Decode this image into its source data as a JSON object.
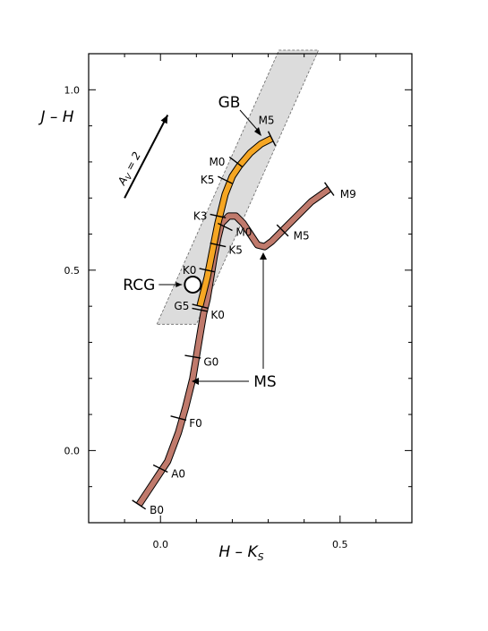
{
  "chart_data": {
    "type": "line",
    "xlabel_main": "H – K",
    "xlabel_sub": "S",
    "ylabel": "J – H",
    "xlim": [
      -0.2,
      0.7
    ],
    "ylim": [
      -0.2,
      1.1
    ],
    "x_ticks": [
      {
        "v": 0.0,
        "label": "0.0"
      },
      {
        "v": 0.5,
        "label": "0.5"
      }
    ],
    "y_ticks": [
      {
        "v": 0.0,
        "label": "0.0"
      },
      {
        "v": 0.5,
        "label": "0.5"
      },
      {
        "v": 1.0,
        "label": "1.0"
      }
    ],
    "colors": {
      "ms_fill": "#c07a6c",
      "gb_fill": "#f5a623",
      "band_fill": "#dcdcdc",
      "outline": "#000000"
    },
    "reddening_band": [
      [
        -0.01,
        0.35
      ],
      [
        0.33,
        1.11
      ],
      [
        0.44,
        1.11
      ],
      [
        0.1,
        0.35
      ]
    ],
    "extinction_vector": {
      "label_main": "A",
      "label_sub": "V",
      "label_tail": " = 2",
      "from": [
        -0.1,
        0.7
      ],
      "to": [
        0.02,
        0.93
      ]
    },
    "main_sequence": {
      "name": "MS",
      "points": [
        [
          -0.06,
          -0.15
        ],
        [
          -0.02,
          -0.09
        ],
        [
          0.02,
          -0.03
        ],
        [
          0.05,
          0.05
        ],
        [
          0.07,
          0.12
        ],
        [
          0.09,
          0.2
        ],
        [
          0.1,
          0.26
        ],
        [
          0.11,
          0.32
        ],
        [
          0.12,
          0.38
        ],
        [
          0.13,
          0.42
        ],
        [
          0.14,
          0.48
        ],
        [
          0.15,
          0.54
        ],
        [
          0.16,
          0.59
        ],
        [
          0.17,
          0.63
        ],
        [
          0.19,
          0.65
        ],
        [
          0.21,
          0.65
        ],
        [
          0.23,
          0.63
        ],
        [
          0.25,
          0.6
        ],
        [
          0.27,
          0.57
        ],
        [
          0.29,
          0.565
        ],
        [
          0.31,
          0.58
        ],
        [
          0.34,
          0.61
        ],
        [
          0.38,
          0.65
        ],
        [
          0.42,
          0.69
        ],
        [
          0.47,
          0.725
        ]
      ],
      "ticks": [
        {
          "label": "B0",
          "x": -0.06,
          "y": -0.15,
          "side": "right"
        },
        {
          "label": "A0",
          "x": 0.0,
          "y": -0.05,
          "side": "right"
        },
        {
          "label": "F0",
          "x": 0.05,
          "y": 0.09,
          "side": "right"
        },
        {
          "label": "G0",
          "x": 0.09,
          "y": 0.26,
          "side": "right"
        },
        {
          "label": "K0",
          "x": 0.11,
          "y": 0.39,
          "side": "right"
        },
        {
          "label": "K5",
          "x": 0.16,
          "y": 0.57,
          "side": "right"
        },
        {
          "label": "M0",
          "x": 0.18,
          "y": 0.62,
          "side": "right"
        },
        {
          "label": "M5",
          "x": 0.34,
          "y": 0.61,
          "side": "right"
        },
        {
          "label": "M9",
          "x": 0.47,
          "y": 0.725,
          "side": "right"
        }
      ]
    },
    "giant_branch": {
      "name": "GB",
      "points": [
        [
          0.11,
          0.4
        ],
        [
          0.12,
          0.44
        ],
        [
          0.13,
          0.48
        ],
        [
          0.14,
          0.53
        ],
        [
          0.15,
          0.58
        ],
        [
          0.16,
          0.63
        ],
        [
          0.17,
          0.67
        ],
        [
          0.18,
          0.71
        ],
        [
          0.2,
          0.76
        ],
        [
          0.22,
          0.79
        ],
        [
          0.25,
          0.825
        ],
        [
          0.28,
          0.85
        ],
        [
          0.31,
          0.865
        ]
      ],
      "ticks": [
        {
          "label": "G5",
          "x": 0.11,
          "y": 0.4,
          "side": "left"
        },
        {
          "label": "K0",
          "x": 0.13,
          "y": 0.5,
          "side": "left"
        },
        {
          "label": "K3",
          "x": 0.16,
          "y": 0.65,
          "side": "left"
        },
        {
          "label": "K5",
          "x": 0.18,
          "y": 0.75,
          "side": "left"
        },
        {
          "label": "M0",
          "x": 0.21,
          "y": 0.8,
          "side": "left"
        },
        {
          "label": "M5",
          "x": 0.31,
          "y": 0.865,
          "side": "top"
        }
      ]
    },
    "rcg": {
      "label": "RCG",
      "x": 0.09,
      "y": 0.46
    }
  }
}
